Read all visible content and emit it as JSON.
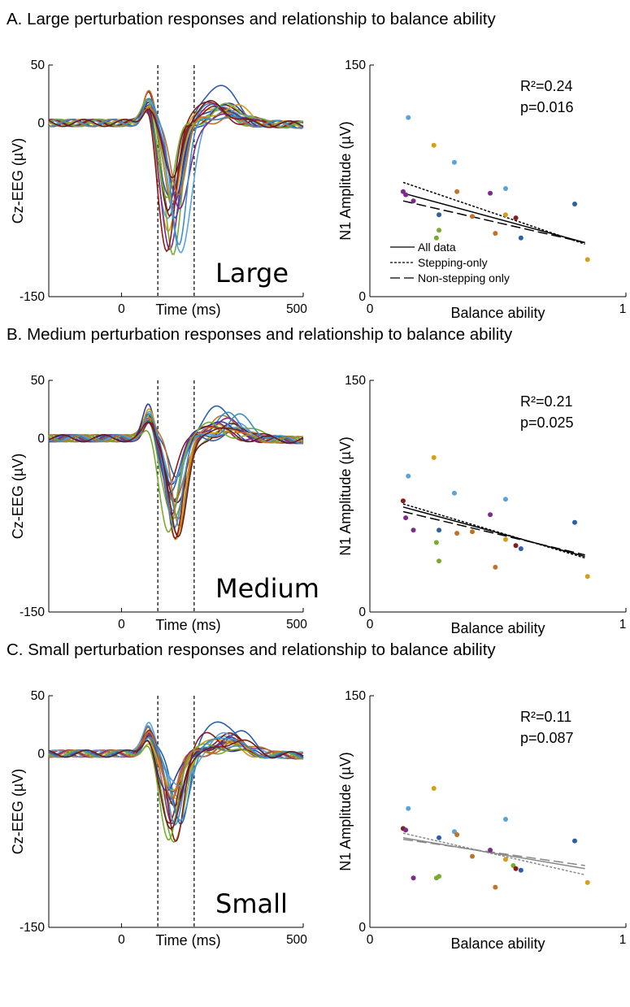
{
  "chart_data": [
    {
      "panel": "A",
      "title": "A. Large perturbation responses and relationship to balance ability",
      "erp": {
        "type": "line",
        "ylabel": "Cz-EEG (µV)",
        "xlabel": "Time (ms)",
        "xlim": [
          -200,
          500
        ],
        "ylim": [
          -150,
          50
        ],
        "xticks": [
          "0",
          "500"
        ],
        "yticks": [
          "50",
          "0",
          "-150"
        ],
        "window_ms": [
          100,
          200
        ],
        "condition": "Large",
        "trough_scale": 1.0,
        "late_peak": 35,
        "grid": false
      },
      "scatter": {
        "type": "scatter",
        "xlabel": "Balance ability",
        "ylabel": "N1 Amplitude (µV)",
        "xlim": [
          0,
          1
        ],
        "ylim": [
          0,
          150
        ],
        "xticks": [
          "0",
          "1"
        ],
        "yticks": [
          "150",
          "0"
        ],
        "r2": "R²=0.24",
        "p": "p=0.016",
        "points": [
          {
            "x": 0.15,
            "y": 116,
            "color": "#5ba3d9"
          },
          {
            "x": 0.25,
            "y": 98,
            "color": "#d4a017"
          },
          {
            "x": 0.33,
            "y": 87,
            "color": "#5ba3d9"
          },
          {
            "x": 0.13,
            "y": 68,
            "color": "#7d2b8b"
          },
          {
            "x": 0.14,
            "y": 66,
            "color": "#7d2b8b"
          },
          {
            "x": 0.17,
            "y": 62,
            "color": "#7d2b8b"
          },
          {
            "x": 0.34,
            "y": 68,
            "color": "#c0722a"
          },
          {
            "x": 0.47,
            "y": 67,
            "color": "#7d2b8b"
          },
          {
            "x": 0.53,
            "y": 70,
            "color": "#5ba3d9"
          },
          {
            "x": 0.27,
            "y": 53,
            "color": "#2b5fa8"
          },
          {
            "x": 0.4,
            "y": 52,
            "color": "#c0722a"
          },
          {
            "x": 0.53,
            "y": 53,
            "color": "#d4a017"
          },
          {
            "x": 0.57,
            "y": 51,
            "color": "#8b1a1a"
          },
          {
            "x": 0.27,
            "y": 43,
            "color": "#77ac30"
          },
          {
            "x": 0.26,
            "y": 38,
            "color": "#77ac30"
          },
          {
            "x": 0.49,
            "y": 41,
            "color": "#c0722a"
          },
          {
            "x": 0.59,
            "y": 38,
            "color": "#2b5fa8"
          },
          {
            "x": 0.8,
            "y": 60,
            "color": "#2b5fa8"
          },
          {
            "x": 0.85,
            "y": 24,
            "color": "#d4a017"
          }
        ],
        "fits": [
          {
            "name": "All data",
            "x": [
              0.13,
              0.84
            ],
            "y": [
              67,
              35
            ],
            "color": "#000000",
            "dash": ""
          },
          {
            "name": "Stepping-only",
            "x": [
              0.13,
              0.84
            ],
            "y": [
              74,
              34
            ],
            "color": "#000000",
            "dash": "3,2"
          },
          {
            "name": "Non-stepping only",
            "x": [
              0.13,
              0.84
            ],
            "y": [
              62,
              35
            ],
            "color": "#000000",
            "dash": "12,5"
          }
        ],
        "legend": {
          "placement": "bottom-left",
          "entries": [
            "All data",
            "Stepping-only",
            "Non-stepping only"
          ]
        }
      }
    },
    {
      "panel": "B",
      "title": "B. Medium perturbation responses and relationship to balance ability",
      "erp": {
        "type": "line",
        "ylabel": "Cz-EEG (µV)",
        "xlabel": "Time (ms)",
        "xlim": [
          -200,
          500
        ],
        "ylim": [
          -150,
          50
        ],
        "xticks": [
          "0",
          "500"
        ],
        "yticks": [
          "50",
          "0",
          "-150"
        ],
        "window_ms": [
          100,
          200
        ],
        "condition": "Medium",
        "trough_scale": 0.78,
        "late_peak": 27,
        "grid": false
      },
      "scatter": {
        "type": "scatter",
        "xlabel": "Balance ability",
        "ylabel": "N1 Amplitude (µV)",
        "xlim": [
          0,
          1
        ],
        "ylim": [
          0,
          150
        ],
        "xticks": [
          "0",
          "1"
        ],
        "yticks": [
          "150",
          "0"
        ],
        "r2": "R²=0.21",
        "p": "p=0.025",
        "points": [
          {
            "x": 0.15,
            "y": 88,
            "color": "#5ba3d9"
          },
          {
            "x": 0.25,
            "y": 100,
            "color": "#d4a017"
          },
          {
            "x": 0.33,
            "y": 77,
            "color": "#5ba3d9"
          },
          {
            "x": 0.13,
            "y": 72,
            "color": "#8b1a1a"
          },
          {
            "x": 0.14,
            "y": 61,
            "color": "#7d2b8b"
          },
          {
            "x": 0.17,
            "y": 53,
            "color": "#7d2b8b"
          },
          {
            "x": 0.47,
            "y": 63,
            "color": "#7d2b8b"
          },
          {
            "x": 0.53,
            "y": 73,
            "color": "#5ba3d9"
          },
          {
            "x": 0.27,
            "y": 53,
            "color": "#2b5fa8"
          },
          {
            "x": 0.34,
            "y": 51,
            "color": "#c0722a"
          },
          {
            "x": 0.4,
            "y": 52,
            "color": "#c0722a"
          },
          {
            "x": 0.53,
            "y": 47,
            "color": "#d4a017"
          },
          {
            "x": 0.57,
            "y": 43,
            "color": "#8b1a1a"
          },
          {
            "x": 0.59,
            "y": 41,
            "color": "#2b5fa8"
          },
          {
            "x": 0.26,
            "y": 45,
            "color": "#77ac30"
          },
          {
            "x": 0.27,
            "y": 33,
            "color": "#77ac30"
          },
          {
            "x": 0.49,
            "y": 29,
            "color": "#c0722a"
          },
          {
            "x": 0.8,
            "y": 58,
            "color": "#2b5fa8"
          },
          {
            "x": 0.85,
            "y": 23,
            "color": "#d4a017"
          }
        ],
        "fits": [
          {
            "name": "All data",
            "x": [
              0.13,
              0.84
            ],
            "y": [
              68,
              36
            ],
            "color": "#000000",
            "dash": ""
          },
          {
            "name": "Stepping-only",
            "x": [
              0.13,
              0.84
            ],
            "y": [
              70,
              35
            ],
            "color": "#000000",
            "dash": "3,2"
          },
          {
            "name": "Non-stepping only",
            "x": [
              0.13,
              0.84
            ],
            "y": [
              65,
              37
            ],
            "color": "#000000",
            "dash": "12,5"
          }
        ]
      }
    },
    {
      "panel": "C",
      "title": "C. Small perturbation responses and relationship to balance ability",
      "erp": {
        "type": "line",
        "ylabel": "Cz-EEG (µV)",
        "xlabel": "Time (ms)",
        "xlim": [
          -200,
          500
        ],
        "ylim": [
          -150,
          50
        ],
        "xticks": [
          "0",
          "500"
        ],
        "yticks": [
          "50",
          "0",
          "-150"
        ],
        "window_ms": [
          100,
          200
        ],
        "condition": "Small",
        "trough_scale": 0.68,
        "late_peak": 30,
        "grid": false
      },
      "scatter": {
        "type": "scatter",
        "xlabel": "Balance ability",
        "ylabel": "N1 Amplitude (µV)",
        "xlim": [
          0,
          1
        ],
        "ylim": [
          0,
          150
        ],
        "xticks": [
          "0",
          "1"
        ],
        "yticks": [
          "150",
          "0"
        ],
        "r2": "R²=0.11",
        "p": "p=0.087",
        "points": [
          {
            "x": 0.15,
            "y": 77,
            "color": "#5ba3d9"
          },
          {
            "x": 0.25,
            "y": 90,
            "color": "#d4a017"
          },
          {
            "x": 0.33,
            "y": 62,
            "color": "#5ba3d9"
          },
          {
            "x": 0.13,
            "y": 64,
            "color": "#8b1a1a"
          },
          {
            "x": 0.14,
            "y": 63,
            "color": "#7d2b8b"
          },
          {
            "x": 0.34,
            "y": 60,
            "color": "#c0722a"
          },
          {
            "x": 0.27,
            "y": 58,
            "color": "#2b5fa8"
          },
          {
            "x": 0.53,
            "y": 70,
            "color": "#5ba3d9"
          },
          {
            "x": 0.47,
            "y": 50,
            "color": "#7d2b8b"
          },
          {
            "x": 0.4,
            "y": 46,
            "color": "#c0722a"
          },
          {
            "x": 0.53,
            "y": 44,
            "color": "#d4a017"
          },
          {
            "x": 0.56,
            "y": 40,
            "color": "#77ac30"
          },
          {
            "x": 0.57,
            "y": 38,
            "color": "#8b1a1a"
          },
          {
            "x": 0.59,
            "y": 37,
            "color": "#2b5fa8"
          },
          {
            "x": 0.17,
            "y": 32,
            "color": "#7d2b8b"
          },
          {
            "x": 0.26,
            "y": 32,
            "color": "#77ac30"
          },
          {
            "x": 0.27,
            "y": 33,
            "color": "#77ac30"
          },
          {
            "x": 0.49,
            "y": 26,
            "color": "#c0722a"
          },
          {
            "x": 0.8,
            "y": 56,
            "color": "#2b5fa8"
          },
          {
            "x": 0.85,
            "y": 29,
            "color": "#d4a017"
          }
        ],
        "fits": [
          {
            "name": "All data",
            "x": [
              0.13,
              0.84
            ],
            "y": [
              58,
              38
            ],
            "color": "#888888",
            "dash": ""
          },
          {
            "name": "Stepping-only",
            "x": [
              0.13,
              0.84
            ],
            "y": [
              61,
              34
            ],
            "color": "#888888",
            "dash": "3,2"
          },
          {
            "name": "Non-stepping only",
            "x": [
              0.13,
              0.84
            ],
            "y": [
              57,
              40
            ],
            "color": "#888888",
            "dash": "12,5"
          }
        ]
      }
    }
  ]
}
